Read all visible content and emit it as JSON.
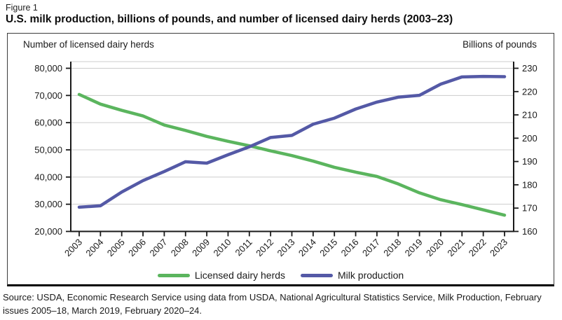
{
  "figure_label": "Figure 1",
  "title": "U.S. milk production, billions of pounds, and number of licensed dairy herds (2003–23)",
  "source": "Source: USDA, Economic Research Service using data from USDA, National Agricultural Statistics Service, Milk Production, February issues 2005–18, March 2019, February 2020–24.",
  "colors": {
    "herds_green": "#5bb55e",
    "milk_blue": "#5459a6",
    "grid_gray": "#cccccc",
    "axis_black": "#1a1a1a"
  },
  "chart_data": {
    "type": "line",
    "title": "U.S. milk production, billions of pounds, and number of licensed dairy herds (2003–23)",
    "x": [
      "2003",
      "2004",
      "2005",
      "2006",
      "2007",
      "2008",
      "2009",
      "2010",
      "2011",
      "2012",
      "2013",
      "2014",
      "2015",
      "2016",
      "2017",
      "2018",
      "2019",
      "2020",
      "2021",
      "2022",
      "2023"
    ],
    "series": [
      {
        "name": "Licensed dairy herds",
        "axis": "left",
        "color": "#5bb55e",
        "values": [
          70375,
          66825,
          64540,
          62470,
          59130,
          57127,
          54942,
          53132,
          51481,
          49618,
          47890,
          45868,
          43584,
          41809,
          40219,
          37468,
          34187,
          31657,
          29858,
          27932,
          25983
        ]
      },
      {
        "name": "Milk production",
        "axis": "right",
        "color": "#5459a6",
        "values": [
          170.4,
          171.0,
          176.9,
          181.8,
          185.7,
          189.9,
          189.3,
          192.9,
          196.3,
          200.3,
          201.2,
          206.0,
          208.6,
          212.5,
          215.5,
          217.6,
          218.4,
          223.2,
          226.3,
          226.5,
          226.4
        ]
      }
    ],
    "left_axis": {
      "label": "Number of licensed dairy herds",
      "min": 20000,
      "max": 80000,
      "step": 10000,
      "tick_labels": [
        "80,000",
        "70,000",
        "60,000",
        "50,000",
        "40,000",
        "30,000",
        "20,000"
      ]
    },
    "right_axis": {
      "label": "Billions of pounds",
      "min": 160,
      "max": 230,
      "step": 10,
      "tick_labels": [
        "230",
        "220",
        "210",
        "200",
        "190",
        "180",
        "170",
        "160"
      ]
    },
    "grid": "horizontal gridlines at left-axis ticks",
    "legend_position": "bottom"
  }
}
